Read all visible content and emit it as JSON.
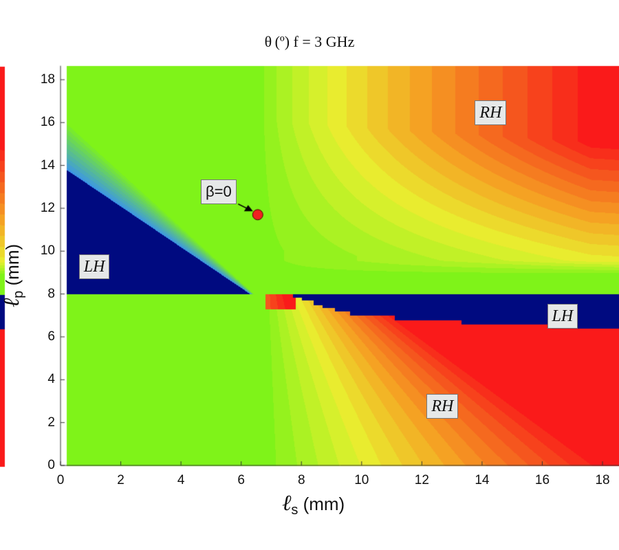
{
  "chart_data": {
    "type": "heatmap",
    "title": "θ (º)  f = 3 GHz",
    "xlabel": {
      "symbol": "ℓ",
      "sub": "s",
      "unit": "(mm)"
    },
    "ylabel": {
      "symbol": "ℓ",
      "sub": "p",
      "unit": "(mm)"
    },
    "xlim": [
      0,
      18.7
    ],
    "ylim": [
      0,
      18.65
    ],
    "xticks": [
      "0",
      "2",
      "4",
      "6",
      "8",
      "10",
      "12",
      "14",
      "16",
      "18"
    ],
    "yticks": [
      "0",
      "2",
      "4",
      "6",
      "8",
      "10",
      "12",
      "14",
      "16",
      "18"
    ],
    "grid": false,
    "colors": {
      "zero": "#7ff319",
      "low": "#e8f030",
      "mid": "#f5a623",
      "high": "#fa1a1a",
      "negative": "#000a80"
    },
    "annotations": [
      {
        "text": "RH",
        "x": 14.4,
        "y": 16.5
      },
      {
        "text": "RH",
        "x": 12.8,
        "y": 2.8
      },
      {
        "text": "LH",
        "x": 1.25,
        "y": 9.3
      },
      {
        "text": "LH",
        "x": 16.8,
        "y": 7.0
      },
      {
        "text": "β=0",
        "x": 5.3,
        "y": 12.8,
        "arrow_to": [
          6.55,
          11.7
        ]
      }
    ],
    "marker": {
      "label": "β=0",
      "x": 6.55,
      "y": 11.7,
      "color": "#f02020"
    },
    "lh_band_lower_edge": [
      [
        7.7,
        7.85
      ],
      [
        8.0,
        7.7
      ],
      [
        8.4,
        7.5
      ],
      [
        8.7,
        7.35
      ],
      [
        9.1,
        7.2
      ],
      [
        9.6,
        7.0
      ],
      [
        11.1,
        6.8
      ],
      [
        13.3,
        6.6
      ],
      [
        16.3,
        6.4
      ],
      [
        18.7,
        6.4
      ]
    ]
  }
}
